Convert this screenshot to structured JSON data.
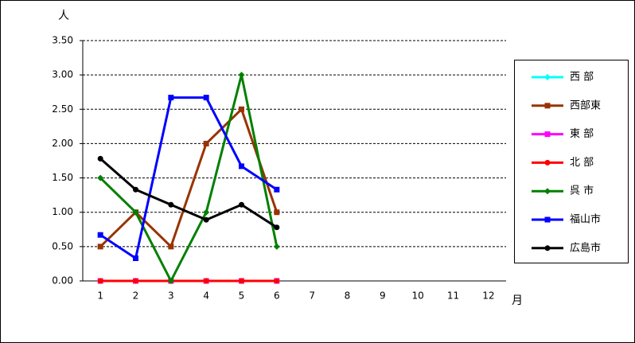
{
  "chart_data": {
    "type": "line",
    "y_label": "人",
    "x_label": "月",
    "categories": [
      "1",
      "2",
      "3",
      "4",
      "5",
      "6",
      "7",
      "8",
      "9",
      "10",
      "11",
      "12"
    ],
    "ylim": [
      0,
      3.5
    ],
    "yticks": [
      {
        "value": 0,
        "label": "0.00"
      },
      {
        "value": 0.5,
        "label": "0.50"
      },
      {
        "value": 1,
        "label": "1.00"
      },
      {
        "value": 1.5,
        "label": "1.50"
      },
      {
        "value": 2,
        "label": "2.00"
      },
      {
        "value": 2.5,
        "label": "2.50"
      },
      {
        "value": 3,
        "label": "3.00"
      },
      {
        "value": 3.5,
        "label": "3.50"
      }
    ],
    "grid": true,
    "legend": "right",
    "series": [
      {
        "name": "西 部",
        "color": "#00ffff",
        "marker": "diamond",
        "values": [
          0,
          0,
          0,
          0,
          0,
          0,
          null,
          null,
          null,
          null,
          null,
          null
        ]
      },
      {
        "name": "西部東",
        "color": "#993300",
        "marker": "square",
        "values": [
          0.5,
          1.0,
          0.5,
          2.0,
          2.5,
          1.0,
          null,
          null,
          null,
          null,
          null,
          null
        ]
      },
      {
        "name": "東 部",
        "color": "#ff00ff",
        "marker": "square",
        "values": [
          0,
          0,
          0,
          0,
          0,
          0,
          null,
          null,
          null,
          null,
          null,
          null
        ]
      },
      {
        "name": "北 部",
        "color": "#ff0000",
        "marker": "circle",
        "values": [
          0,
          0,
          0,
          0,
          0,
          0,
          null,
          null,
          null,
          null,
          null,
          null
        ]
      },
      {
        "name": "呉 市",
        "color": "#008000",
        "marker": "diamond",
        "values": [
          1.5,
          1.0,
          0,
          1.0,
          3.0,
          0.5,
          null,
          null,
          null,
          null,
          null,
          null
        ]
      },
      {
        "name": "福山市",
        "color": "#0000ff",
        "marker": "square",
        "values": [
          0.67,
          0.33,
          2.67,
          2.67,
          1.67,
          1.33,
          null,
          null,
          null,
          null,
          null,
          null
        ]
      },
      {
        "name": "広島市",
        "color": "#000000",
        "marker": "circle",
        "values": [
          1.78,
          1.33,
          1.11,
          0.89,
          1.11,
          0.78,
          null,
          null,
          null,
          null,
          null,
          null
        ]
      }
    ]
  }
}
